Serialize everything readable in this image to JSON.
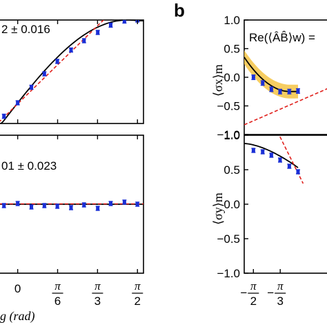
{
  "figure": {
    "panel_b_letter": "b",
    "annot_top_left": "2 ± 0.016",
    "annot_bottom_left": "01 ± 0.023",
    "annot_right_top": "Re(⟨ÂB̂⟩w) =",
    "xlabel_left": "g (rad)",
    "ylabel_right_top": "⟨σx⟩m",
    "ylabel_right_bottom": "⟨σy⟩m"
  },
  "chart_data": [
    {
      "type": "scatter",
      "panel": "top-left",
      "xlim": [
        -0.25,
        1.65
      ],
      "ylim": [
        0,
        1
      ],
      "annotation": "2 ± 0.016",
      "points": [
        {
          "x": -0.18,
          "y": 0.07,
          "err": 0.02
        },
        {
          "x": 0.0,
          "y": 0.2,
          "err": 0.02
        },
        {
          "x": 0.18,
          "y": 0.35,
          "err": 0.02
        },
        {
          "x": 0.35,
          "y": 0.48,
          "err": 0.02
        },
        {
          "x": 0.52,
          "y": 0.6,
          "err": 0.02
        },
        {
          "x": 0.7,
          "y": 0.71,
          "err": 0.02
        },
        {
          "x": 0.87,
          "y": 0.8,
          "err": 0.02
        },
        {
          "x": 1.05,
          "y": 0.88,
          "err": 0.02
        },
        {
          "x": 1.22,
          "y": 0.95,
          "err": 0.02
        },
        {
          "x": 1.4,
          "y": 0.99,
          "err": 0.02
        },
        {
          "x": 1.57,
          "y": 1.0,
          "err": 0.02
        }
      ],
      "theory_curve": "sin",
      "linear_fit_slope": 0.72,
      "linear_fit_intercept": 0.19
    },
    {
      "type": "scatter",
      "panel": "bottom-left",
      "xlim": [
        -0.25,
        1.65
      ],
      "ylim": [
        -1,
        1
      ],
      "xtick_labels": [
        "0",
        "π/6",
        "π/3",
        "π/2"
      ],
      "xticks": [
        0,
        0.5236,
        1.0472,
        1.5708
      ],
      "xlabel": "g (rad)",
      "annotation": "01 ± 0.023",
      "points": [
        {
          "x": -0.18,
          "y": -0.02,
          "err": 0.03
        },
        {
          "x": 0.0,
          "y": 0.01,
          "err": 0.03
        },
        {
          "x": 0.18,
          "y": -0.04,
          "err": 0.03
        },
        {
          "x": 0.35,
          "y": -0.02,
          "err": 0.03
        },
        {
          "x": 0.52,
          "y": -0.03,
          "err": 0.03
        },
        {
          "x": 0.7,
          "y": -0.05,
          "err": 0.03
        },
        {
          "x": 0.87,
          "y": -0.01,
          "err": 0.03
        },
        {
          "x": 1.05,
          "y": -0.06,
          "err": 0.03
        },
        {
          "x": 1.22,
          "y": 0.01,
          "err": 0.03
        },
        {
          "x": 1.4,
          "y": 0.03,
          "err": 0.03
        },
        {
          "x": 1.57,
          "y": 0.0,
          "err": 0.03
        }
      ]
    },
    {
      "type": "scatter",
      "panel": "right-top",
      "xlim": [
        -1.75,
        0
      ],
      "ylim": [
        -1.0,
        1.0
      ],
      "yticks": [
        -1.0,
        -0.5,
        0.0,
        0.5,
        1.0
      ],
      "ytick_labels": [
        "−1.0",
        "−0.5",
        "0.0",
        "0.5",
        "1.0"
      ],
      "ylabel": "⟨σx⟩m",
      "annotation": "Re(⟨ÂB̂⟩w) =",
      "points": [
        {
          "x": -1.57,
          "y": 0.0,
          "err": 0.04
        },
        {
          "x": -1.39,
          "y": -0.1,
          "err": 0.04
        },
        {
          "x": -1.22,
          "y": -0.21,
          "err": 0.04
        },
        {
          "x": -1.05,
          "y": -0.25,
          "err": 0.04
        },
        {
          "x": -0.87,
          "y": -0.25,
          "err": 0.04
        },
        {
          "x": -0.7,
          "y": -0.24,
          "err": 0.04
        }
      ]
    },
    {
      "type": "scatter",
      "panel": "right-bottom",
      "xlim": [
        -1.75,
        0
      ],
      "ylim": [
        -1.0,
        1.0
      ],
      "yticks": [
        -1.0,
        -0.5,
        0.0,
        0.5,
        1.0
      ],
      "ytick_labels": [
        "−1.0",
        "−0.5",
        "0.0",
        "0.5",
        "1.0"
      ],
      "xticks": [
        -1.5708,
        -1.0472
      ],
      "xtick_labels": [
        "−π/2",
        "−π/3"
      ],
      "ylabel": "⟨σy⟩m",
      "points": [
        {
          "x": -1.57,
          "y": 0.78,
          "err": 0.03
        },
        {
          "x": -1.39,
          "y": 0.76,
          "err": 0.03
        },
        {
          "x": -1.22,
          "y": 0.71,
          "err": 0.03
        },
        {
          "x": -1.05,
          "y": 0.64,
          "err": 0.03
        },
        {
          "x": -0.87,
          "y": 0.55,
          "err": 0.03
        },
        {
          "x": -0.7,
          "y": 0.47,
          "err": 0.03
        }
      ]
    }
  ]
}
